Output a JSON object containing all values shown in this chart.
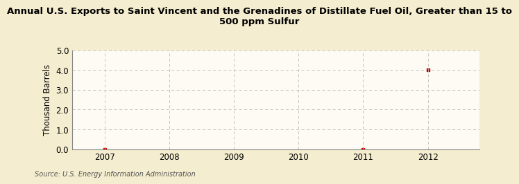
{
  "title_line1": "Annual U.S. Exports to Saint Vincent and the Grenadines of Distillate Fuel Oil, Greater than 15 to",
  "title_line2": "500 ppm Sulfur",
  "ylabel": "Thousand Barrels",
  "source": "Source: U.S. Energy Information Administration",
  "x_data": [
    2007,
    2011,
    2012
  ],
  "y_data": [
    0,
    0,
    4.0
  ],
  "xlim": [
    2006.5,
    2012.8
  ],
  "ylim": [
    0.0,
    5.0
  ],
  "yticks": [
    0.0,
    1.0,
    2.0,
    3.0,
    4.0,
    5.0
  ],
  "xticks": [
    2007,
    2008,
    2009,
    2010,
    2011,
    2012
  ],
  "background_color": "#f5edcf",
  "plot_bg_color": "#fdfbf3",
  "marker_color": "#cc0000",
  "marker": "s",
  "marker_size": 3,
  "grid_color": "#bbbbbb",
  "title_fontsize": 9.5,
  "axis_label_fontsize": 8.5,
  "tick_fontsize": 8.5,
  "source_fontsize": 7.0
}
